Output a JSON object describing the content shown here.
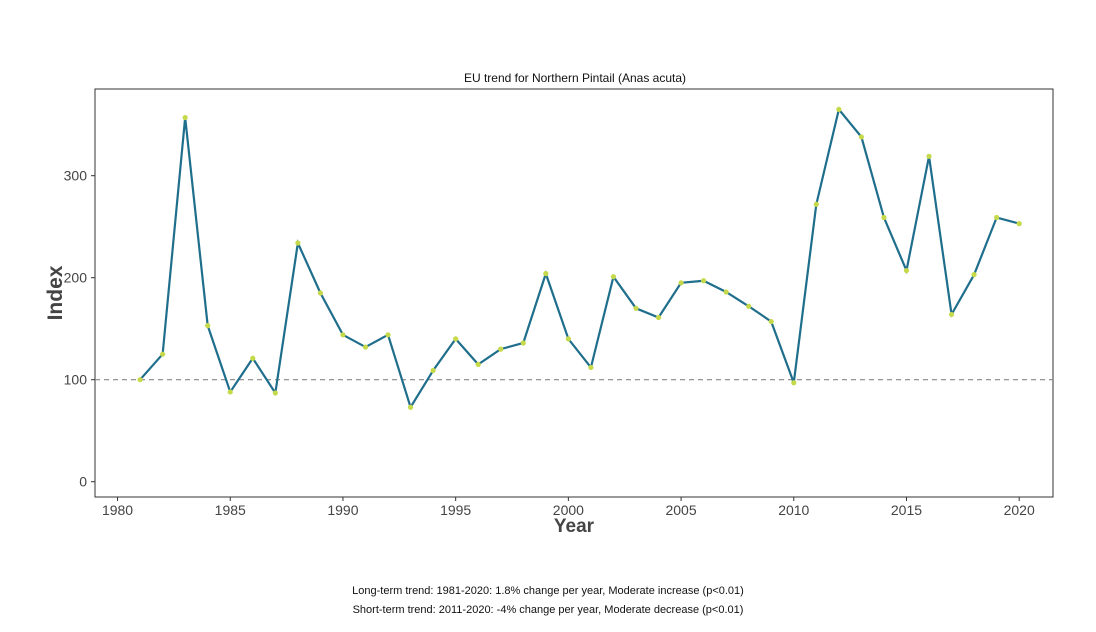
{
  "chart_data": {
    "type": "line",
    "title": "EU trend for Northern Pintail (Anas acuta)",
    "xlabel": "Year",
    "ylabel": "Index",
    "xlim": [
      1979,
      2021.5
    ],
    "ylim": [
      -15,
      385
    ],
    "xticks": [
      1980,
      1985,
      1990,
      1995,
      2000,
      2005,
      2010,
      2015,
      2020
    ],
    "yticks": [
      0,
      100,
      200,
      300
    ],
    "reference_line": 100,
    "grid": false,
    "x": [
      1981,
      1982,
      1983,
      1984,
      1985,
      1986,
      1987,
      1988,
      1989,
      1990,
      1991,
      1992,
      1993,
      1994,
      1995,
      1996,
      1997,
      1998,
      1999,
      2000,
      2001,
      2002,
      2003,
      2004,
      2005,
      2006,
      2007,
      2008,
      2009,
      2010,
      2011,
      2012,
      2013,
      2014,
      2015,
      2016,
      2017,
      2018,
      2019,
      2020
    ],
    "series": [
      {
        "name": "Index",
        "values": [
          100,
          125,
          357,
          153,
          88,
          121,
          87,
          234,
          185,
          144,
          132,
          144,
          73,
          109,
          140,
          115,
          130,
          136,
          204,
          140,
          112,
          201,
          170,
          161,
          195,
          197,
          186,
          172,
          157,
          97,
          272,
          365,
          338,
          259,
          207,
          319,
          164,
          203,
          259,
          253
        ]
      }
    ],
    "colors": {
      "line": "#1f6e8c",
      "point": "#c5d94a",
      "refline": "#888888"
    }
  },
  "footnotes": {
    "long_term": "Long-term trend: 1981-2020: 1.8% change per year, Moderate increase (p<0.01)",
    "short_term": "Short-term trend: 2011-2020: -4% change per year, Moderate decrease (p<0.01)"
  }
}
